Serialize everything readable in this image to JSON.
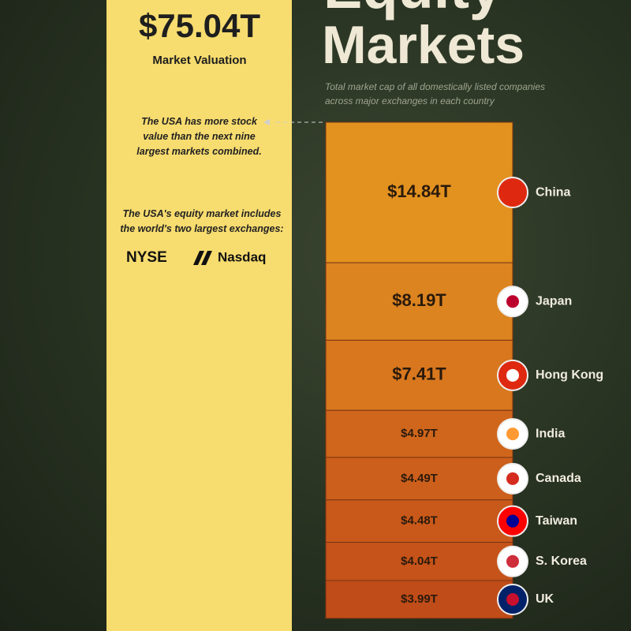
{
  "chart_data": {
    "type": "stacked-bar",
    "title": [
      "Equity",
      "Markets"
    ],
    "subtitle": "Total market cap of all domestically listed companies across major exchanges in each country",
    "usa": {
      "value": 75.04,
      "value_label": "$75.04T",
      "label": "Market Valuation",
      "color": "#f7dc6f"
    },
    "annotations": [
      "The USA has more stock value than the next nine largest markets combined.",
      "The USA's equity market includes the world's two largest exchanges:"
    ],
    "exchanges": [
      "NYSE",
      "Nasdaq"
    ],
    "categories": [
      "China",
      "Japan",
      "Hong Kong",
      "India",
      "Canada",
      "Taiwan",
      "S. Korea",
      "UK"
    ],
    "values": [
      14.84,
      8.19,
      7.41,
      4.97,
      4.49,
      4.48,
      4.04,
      3.99
    ],
    "value_labels": [
      "$14.84T",
      "$8.19T",
      "$7.41T",
      "$4.97T",
      "$4.49T",
      "$4.48T",
      "$4.04T",
      "$3.99T"
    ],
    "colors": [
      "#e3921f",
      "#dc8420",
      "#d8771e",
      "#cf661c",
      "#cc5f1b",
      "#c9591b",
      "#c5531a",
      "#c04c19"
    ]
  }
}
